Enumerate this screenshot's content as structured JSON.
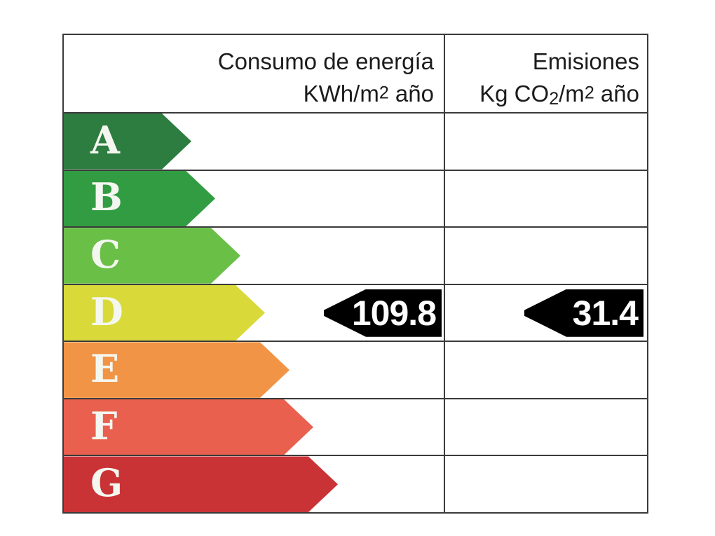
{
  "table": {
    "border_color": "#3a3a3a",
    "header": {
      "col1": {
        "line1": "Consumo de energía",
        "line2_pre": "KWh/m",
        "line2_sup": "2",
        "line2_post": " año"
      },
      "col2": {
        "line1": "Emisiones",
        "line2_pre": "Kg CO",
        "line2_sub": "2",
        "line2_mid": "/m",
        "line2_sup": "2",
        "line2_post": " año"
      }
    },
    "rows": [
      {
        "letter": "A",
        "color": "#2d7c40",
        "arrow_width": 182
      },
      {
        "letter": "B",
        "color": "#319c41",
        "arrow_width": 216
      },
      {
        "letter": "C",
        "color": "#6abf47",
        "arrow_width": 252
      },
      {
        "letter": "D",
        "color": "#d9da3a",
        "arrow_width": 287
      },
      {
        "letter": "E",
        "color": "#f29446",
        "arrow_width": 322
      },
      {
        "letter": "F",
        "color": "#e9614e",
        "arrow_width": 356
      },
      {
        "letter": "G",
        "color": "#ca3335",
        "arrow_width": 391
      }
    ],
    "rating": {
      "rated_class": "D",
      "consumption_value": "109.8",
      "emissions_value": "31.4",
      "arrow_color": "#000000",
      "value_text_color": "#ffffff"
    }
  },
  "chart_data": {
    "type": "bar",
    "categories": [
      "A",
      "B",
      "C",
      "D",
      "E",
      "F",
      "G"
    ],
    "band_colors": [
      "#2d7c40",
      "#319c41",
      "#6abf47",
      "#d9da3a",
      "#f29446",
      "#e9614e",
      "#ca3335"
    ],
    "series": [
      {
        "name": "Consumo de energía KWh/m2 año",
        "rated_class": "D",
        "value": 109.8
      },
      {
        "name": "Emisiones Kg CO2/m2 año",
        "rated_class": "D",
        "value": 31.4
      }
    ],
    "legend_position": "none",
    "grid": false
  }
}
